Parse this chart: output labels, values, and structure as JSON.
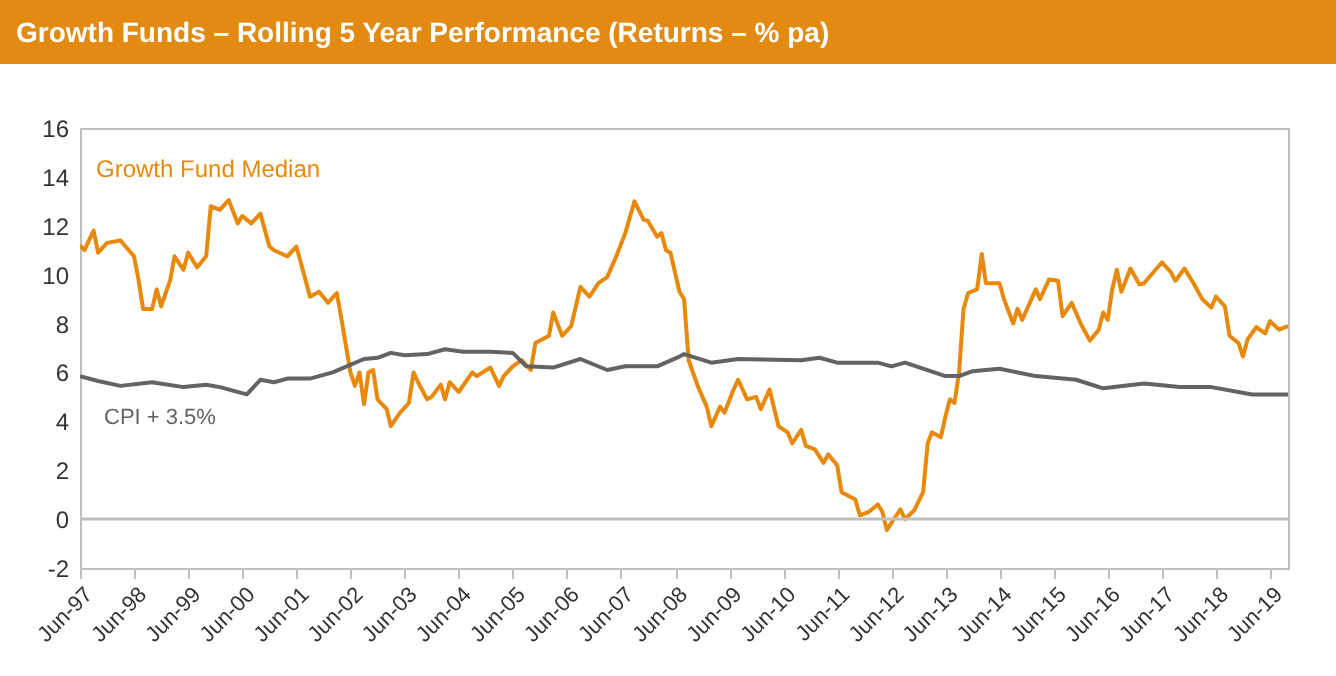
{
  "chart_data": {
    "type": "line",
    "title": "Growth Funds – Rolling 5 Year Performance (Returns – % pa)",
    "xlim": [
      "1997-06",
      "2019-10"
    ],
    "xticks": [
      {
        "value": "1997-06",
        "label": "Jun-97"
      },
      {
        "value": "1998-06",
        "label": "Jun-98"
      },
      {
        "value": "1999-06",
        "label": "Jun-99"
      },
      {
        "value": "2000-06",
        "label": "Jun-00"
      },
      {
        "value": "2001-06",
        "label": "Jun-01"
      },
      {
        "value": "2002-06",
        "label": "Jun-02"
      },
      {
        "value": "2003-06",
        "label": "Jun-03"
      },
      {
        "value": "2004-06",
        "label": "Jun-04"
      },
      {
        "value": "2005-06",
        "label": "Jun-05"
      },
      {
        "value": "2006-06",
        "label": "Jun-06"
      },
      {
        "value": "2007-06",
        "label": "Jun-07"
      },
      {
        "value": "2008-06",
        "label": "Jun-08"
      },
      {
        "value": "2009-06",
        "label": "Jun-09"
      },
      {
        "value": "2010-06",
        "label": "Jun-10"
      },
      {
        "value": "2011-06",
        "label": "Jun-11"
      },
      {
        "value": "2012-06",
        "label": "Jun-12"
      },
      {
        "value": "2013-06",
        "label": "Jun-13"
      },
      {
        "value": "2014-06",
        "label": "Jun-14"
      },
      {
        "value": "2015-06",
        "label": "Jun-15"
      },
      {
        "value": "2016-06",
        "label": "Jun-16"
      },
      {
        "value": "2017-06",
        "label": "Jun-17"
      },
      {
        "value": "2018-06",
        "label": "Jun-18"
      },
      {
        "value": "2019-06",
        "label": "Jun-19"
      }
    ],
    "ylim": [
      -2,
      16
    ],
    "yticks": [
      -2,
      0,
      2,
      4,
      6,
      8,
      10,
      12,
      14,
      16
    ],
    "ref_lines": [
      {
        "axis": "y",
        "value": 0,
        "color": "#bfbfbf"
      }
    ],
    "series": [
      {
        "name": "Growth Fund Median",
        "color": "#e8890c",
        "x": [
          "1997-06",
          "1997-07",
          "1997-09",
          "1997-10",
          "1997-12",
          "1998-03",
          "1998-06",
          "1998-07",
          "1998-08",
          "1998-10",
          "1998-11",
          "1998-12",
          "1999-02",
          "1999-03",
          "1999-05",
          "1999-06",
          "1999-08",
          "1999-10",
          "1999-11",
          "2000-01",
          "2000-03",
          "2000-05",
          "2000-06",
          "2000-08",
          "2000-10",
          "2000-12",
          "2001-01",
          "2001-04",
          "2001-06",
          "2001-07",
          "2001-09",
          "2001-11",
          "2002-01",
          "2002-03",
          "2002-04",
          "2002-06",
          "2002-07",
          "2002-08",
          "2002-09",
          "2002-10",
          "2002-11",
          "2002-12",
          "2003-02",
          "2003-03",
          "2003-05",
          "2003-07",
          "2003-08",
          "2003-09",
          "2003-11",
          "2003-12",
          "2004-02",
          "2004-03",
          "2004-04",
          "2004-06",
          "2004-09",
          "2004-10",
          "2005-01",
          "2005-03",
          "2005-04",
          "2005-06",
          "2005-08",
          "2005-10",
          "2005-11",
          "2006-02",
          "2006-03",
          "2006-05",
          "2006-07",
          "2006-09",
          "2006-11",
          "2007-01",
          "2007-03",
          "2007-05",
          "2007-07",
          "2007-09",
          "2007-11",
          "2007-12",
          "2008-02",
          "2008-03",
          "2008-04",
          "2008-05",
          "2008-07",
          "2008-08",
          "2008-09",
          "2008-11",
          "2009-01",
          "2009-02",
          "2009-04",
          "2009-05",
          "2009-07",
          "2009-08",
          "2009-10",
          "2009-12",
          "2010-01",
          "2010-03",
          "2010-05",
          "2010-07",
          "2010-08",
          "2010-10",
          "2010-11",
          "2011-01",
          "2011-03",
          "2011-04",
          "2011-06",
          "2011-07",
          "2011-10",
          "2011-11",
          "2012-01",
          "2012-03",
          "2012-04",
          "2012-05",
          "2012-06",
          "2012-08",
          "2012-09",
          "2012-11",
          "2013-01",
          "2013-02",
          "2013-03",
          "2013-05",
          "2013-06",
          "2013-07",
          "2013-08",
          "2013-09",
          "2013-10",
          "2013-11",
          "2014-01",
          "2014-02",
          "2014-03",
          "2014-06",
          "2014-07",
          "2014-09",
          "2014-10",
          "2014-11",
          "2015-02",
          "2015-03",
          "2015-05",
          "2015-07",
          "2015-08",
          "2015-10",
          "2015-12",
          "2016-02",
          "2016-04",
          "2016-05",
          "2016-06",
          "2016-07",
          "2016-08",
          "2016-09",
          "2016-11",
          "2017-01",
          "2017-02",
          "2017-06",
          "2017-08",
          "2017-09",
          "2017-11",
          "2018-01",
          "2018-03",
          "2018-05",
          "2018-06",
          "2018-08",
          "2018-09",
          "2018-11",
          "2018-12",
          "2019-01",
          "2019-03",
          "2019-05",
          "2019-06",
          "2019-08",
          "2019-10"
        ],
        "values": [
          11.2,
          11.0,
          11.8,
          10.9,
          11.3,
          11.4,
          10.75,
          9.8,
          8.6,
          8.6,
          9.4,
          8.7,
          9.8,
          10.75,
          10.2,
          10.9,
          10.3,
          10.75,
          12.8,
          12.65,
          13.05,
          12.1,
          12.4,
          12.1,
          12.5,
          11.15,
          11.0,
          10.75,
          11.15,
          10.5,
          9.1,
          9.3,
          8.85,
          9.25,
          8.2,
          6.0,
          5.45,
          6.0,
          4.7,
          6.0,
          6.1,
          4.9,
          4.5,
          3.8,
          4.35,
          4.75,
          6.0,
          5.6,
          4.9,
          5.0,
          5.5,
          4.9,
          5.6,
          5.2,
          6.0,
          5.85,
          6.2,
          5.45,
          5.85,
          6.25,
          6.5,
          6.1,
          7.2,
          7.5,
          8.45,
          7.5,
          7.9,
          9.5,
          9.1,
          9.65,
          9.9,
          10.75,
          11.7,
          13.0,
          12.25,
          12.2,
          11.55,
          11.7,
          11.0,
          10.9,
          9.3,
          9.0,
          6.5,
          5.45,
          4.6,
          3.8,
          4.6,
          4.35,
          5.3,
          5.7,
          4.9,
          5.0,
          4.5,
          5.3,
          3.8,
          3.55,
          3.1,
          3.65,
          3.0,
          2.85,
          2.3,
          2.65,
          2.2,
          1.1,
          0.8,
          0.15,
          0.3,
          0.6,
          0.3,
          -0.45,
          -0.15,
          0.4,
          0.0,
          0.35,
          1.1,
          3.1,
          3.55,
          3.35,
          4.2,
          4.9,
          4.75,
          6.0,
          8.6,
          9.25,
          9.4,
          10.85,
          9.65,
          9.65,
          9.0,
          8.0,
          8.6,
          8.15,
          9.4,
          9.0,
          9.8,
          9.75,
          8.3,
          8.85,
          8.0,
          7.3,
          7.75,
          8.45,
          8.15,
          9.4,
          10.2,
          9.3,
          10.25,
          9.6,
          9.65,
          10.5,
          10.1,
          9.75,
          10.25,
          9.65,
          9.0,
          8.65,
          9.1,
          8.7,
          7.5,
          7.2,
          6.65,
          7.35,
          7.85,
          7.6,
          8.1,
          7.75,
          7.9
        ]
      },
      {
        "name": "CPI + 3.5%",
        "color": "#636363",
        "x": [
          "1997-06",
          "1997-10",
          "1998-03",
          "1998-10",
          "1999-05",
          "1999-10",
          "2000-01",
          "2000-07",
          "2000-10",
          "2001-01",
          "2001-04",
          "2001-09",
          "2002-02",
          "2002-09",
          "2002-12",
          "2003-03",
          "2003-06",
          "2003-11",
          "2004-03",
          "2004-07",
          "2005-01",
          "2005-06",
          "2005-09",
          "2006-03",
          "2006-09",
          "2007-03",
          "2007-07",
          "2008-02",
          "2008-07",
          "2008-08",
          "2009-02",
          "2009-08",
          "2010-10",
          "2011-02",
          "2011-06",
          "2012-03",
          "2012-06",
          "2012-09",
          "2013-06",
          "2013-09",
          "2013-12",
          "2014-06",
          "2015-02",
          "2015-11",
          "2016-05",
          "2017-02",
          "2017-10",
          "2018-05",
          "2019-02",
          "2019-10"
        ],
        "values": [
          5.85,
          5.65,
          5.45,
          5.6,
          5.4,
          5.5,
          5.4,
          5.1,
          5.7,
          5.6,
          5.75,
          5.75,
          6.0,
          6.55,
          6.6,
          6.8,
          6.7,
          6.75,
          6.95,
          6.85,
          6.85,
          6.8,
          6.25,
          6.2,
          6.55,
          6.1,
          6.25,
          6.25,
          6.65,
          6.75,
          6.4,
          6.55,
          6.5,
          6.6,
          6.4,
          6.4,
          6.25,
          6.4,
          5.85,
          5.85,
          6.05,
          6.15,
          5.85,
          5.7,
          5.35,
          5.55,
          5.4,
          5.4,
          5.1,
          5.1
        ]
      }
    ]
  }
}
